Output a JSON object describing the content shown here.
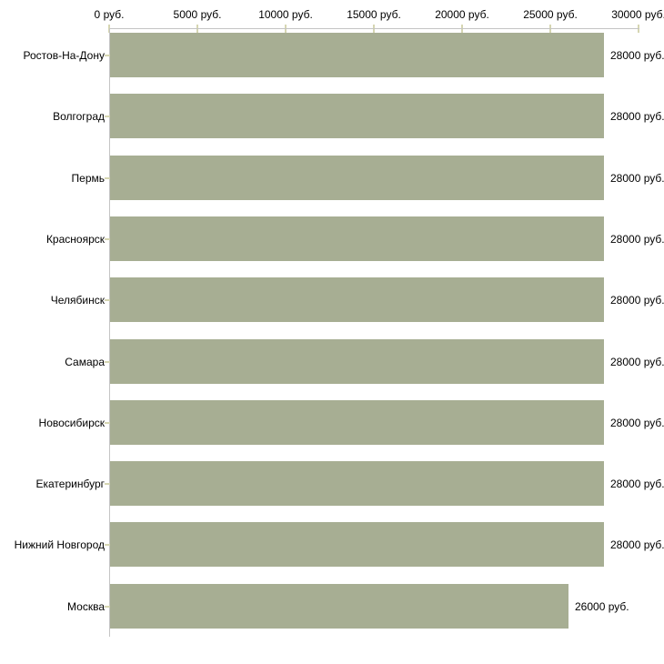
{
  "chart_data": {
    "type": "bar",
    "orientation": "horizontal",
    "title": "",
    "unit": "руб.",
    "categories": [
      "Ростов-На-Дону",
      "Волгоград",
      "Пермь",
      "Красноярск",
      "Челябинск",
      "Самара",
      "Новосибирск",
      "Екатеринбург",
      "Нижний Новгород",
      "Москва"
    ],
    "values": [
      28000,
      28000,
      28000,
      28000,
      28000,
      28000,
      28000,
      28000,
      28000,
      26000
    ],
    "value_labels": [
      "28000 руб.",
      "28000 руб.",
      "28000 руб.",
      "28000 руб.",
      "28000 руб.",
      "28000 руб.",
      "28000 руб.",
      "28000 руб.",
      "28000 руб.",
      "26000 руб."
    ],
    "x_axis": {
      "position": "top",
      "range": [
        0,
        30000
      ],
      "ticks": [
        0,
        5000,
        10000,
        15000,
        20000,
        25000,
        30000
      ],
      "tick_labels": [
        "0 руб.",
        "5000 руб.",
        "10000 руб.",
        "15000 руб.",
        "20000 руб.",
        "25000 руб.",
        "30000 руб."
      ]
    },
    "legend": "none",
    "grid": false,
    "colors": {
      "bar": "#a7ae93",
      "tick": "#d6d6b2",
      "axis": "#c4c4c4",
      "text": "#000000",
      "background": "#ffffff"
    }
  }
}
